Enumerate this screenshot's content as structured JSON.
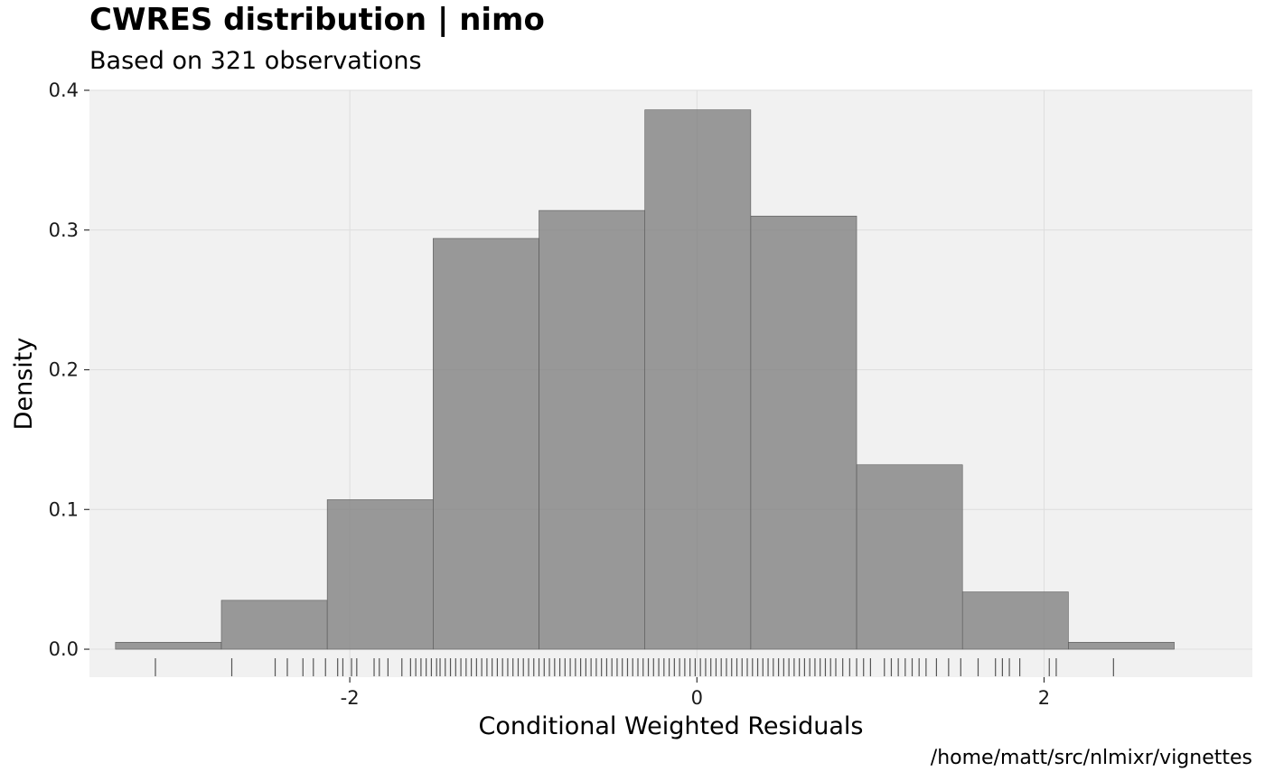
{
  "chart_data": {
    "type": "bar",
    "title": "CWRES distribution | nimo",
    "subtitle": "Based on 321 observations",
    "caption": "/home/matt/src/nlmixr/vignettes",
    "xlabel": "Conditional Weighted Residuals",
    "ylabel": "Density",
    "xlim": [
      -3.5,
      3.2
    ],
    "ylim": [
      -0.02,
      0.4
    ],
    "x_ticks": [
      -2,
      0,
      2
    ],
    "x_tick_labels": [
      "-2",
      "0",
      "2"
    ],
    "y_ticks": [
      0.0,
      0.1,
      0.2,
      0.3,
      0.4
    ],
    "y_tick_labels": [
      "0.0",
      "0.1",
      "0.2",
      "0.3",
      "0.4"
    ],
    "grid": true,
    "bin_edges": [
      -3.35,
      -2.74,
      -2.13,
      -1.52,
      -0.91,
      -0.3,
      0.31,
      0.92,
      1.53,
      2.14,
      2.75
    ],
    "values": [
      0.005,
      0.035,
      0.107,
      0.294,
      0.314,
      0.386,
      0.31,
      0.132,
      0.041,
      0.005
    ],
    "bar_fill": "#7f7f7f",
    "bar_stroke": "#5a5a5a",
    "panel_background": "#f1f1f1",
    "grid_color": "#dedede",
    "rug": [
      -3.12,
      -2.68,
      -2.43,
      -2.36,
      -2.27,
      -2.21,
      -2.14,
      -2.07,
      -2.04,
      -1.99,
      -1.96,
      -1.86,
      -1.83,
      -1.78,
      -1.7,
      -1.65,
      -1.62,
      -1.59,
      -1.56,
      -1.53,
      -1.5,
      -1.48,
      -1.45,
      -1.42,
      -1.39,
      -1.36,
      -1.33,
      -1.3,
      -1.27,
      -1.24,
      -1.21,
      -1.18,
      -1.15,
      -1.12,
      -1.09,
      -1.06,
      -1.03,
      -1.0,
      -0.97,
      -0.94,
      -0.91,
      -0.88,
      -0.85,
      -0.82,
      -0.79,
      -0.76,
      -0.73,
      -0.7,
      -0.67,
      -0.64,
      -0.61,
      -0.58,
      -0.55,
      -0.52,
      -0.49,
      -0.46,
      -0.43,
      -0.4,
      -0.37,
      -0.34,
      -0.31,
      -0.28,
      -0.25,
      -0.22,
      -0.19,
      -0.16,
      -0.13,
      -0.1,
      -0.07,
      -0.04,
      -0.01,
      0.02,
      0.05,
      0.08,
      0.11,
      0.14,
      0.17,
      0.2,
      0.23,
      0.26,
      0.29,
      0.32,
      0.35,
      0.38,
      0.41,
      0.44,
      0.47,
      0.5,
      0.53,
      0.56,
      0.59,
      0.62,
      0.65,
      0.68,
      0.71,
      0.74,
      0.77,
      0.8,
      0.84,
      0.88,
      0.92,
      0.96,
      1.0,
      1.08,
      1.12,
      1.16,
      1.2,
      1.24,
      1.28,
      1.32,
      1.38,
      1.45,
      1.52,
      1.62,
      1.72,
      1.76,
      1.8,
      1.86,
      2.03,
      2.07,
      2.4
    ]
  }
}
